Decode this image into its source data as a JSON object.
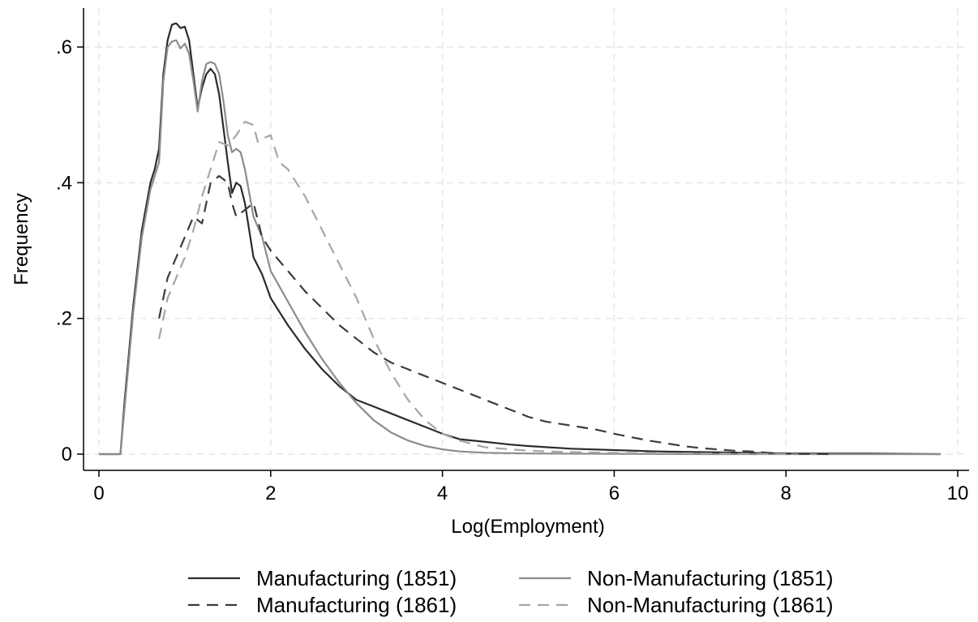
{
  "chart_data": {
    "type": "line",
    "title": "",
    "xlabel": "Log(Employment)",
    "ylabel": "Frequency",
    "xlim": [
      0,
      10
    ],
    "ylim": [
      0,
      0.65
    ],
    "xticks": [
      0,
      2,
      4,
      6,
      8,
      10
    ],
    "xtick_labels": [
      "0",
      "2",
      "4",
      "6",
      "8",
      "10"
    ],
    "yticks": [
      0,
      0.2,
      0.4,
      0.6
    ],
    "ytick_labels": [
      "0",
      ".2",
      ".4",
      ".6"
    ],
    "grid": true,
    "legend_position": "bottom",
    "series": [
      {
        "name": "Manufacturing (1851)",
        "color": "#2b2b2b",
        "dash": "solid",
        "x": [
          0,
          0.25,
          0.3,
          0.4,
          0.5,
          0.6,
          0.65,
          0.7,
          0.75,
          0.8,
          0.85,
          0.9,
          0.95,
          1.0,
          1.05,
          1.1,
          1.15,
          1.2,
          1.25,
          1.3,
          1.35,
          1.4,
          1.45,
          1.5,
          1.55,
          1.6,
          1.65,
          1.7,
          1.8,
          1.9,
          2.0,
          2.2,
          2.4,
          2.6,
          2.8,
          3.0,
          3.2,
          3.4,
          3.6,
          3.8,
          4.0,
          4.2,
          4.5,
          4.8,
          5.0,
          5.5,
          6.0,
          6.5,
          7.0,
          7.5,
          8.0,
          9.0,
          9.8
        ],
        "y": [
          0,
          0,
          0.08,
          0.22,
          0.33,
          0.4,
          0.42,
          0.45,
          0.56,
          0.61,
          0.633,
          0.635,
          0.628,
          0.63,
          0.61,
          0.56,
          0.51,
          0.54,
          0.56,
          0.568,
          0.56,
          0.53,
          0.48,
          0.43,
          0.385,
          0.4,
          0.395,
          0.37,
          0.29,
          0.265,
          0.23,
          0.19,
          0.155,
          0.125,
          0.1,
          0.08,
          0.07,
          0.06,
          0.05,
          0.04,
          0.03,
          0.022,
          0.018,
          0.014,
          0.012,
          0.008,
          0.006,
          0.004,
          0.003,
          0.002,
          0.001,
          0.001,
          0.0
        ]
      },
      {
        "name": "Non-Manufacturing (1851)",
        "color": "#8c8c8c",
        "dash": "solid",
        "x": [
          0,
          0.25,
          0.3,
          0.4,
          0.5,
          0.6,
          0.65,
          0.7,
          0.75,
          0.8,
          0.85,
          0.9,
          0.95,
          1.0,
          1.05,
          1.1,
          1.15,
          1.2,
          1.25,
          1.3,
          1.35,
          1.4,
          1.45,
          1.5,
          1.55,
          1.6,
          1.65,
          1.7,
          1.8,
          1.9,
          2.0,
          2.2,
          2.4,
          2.6,
          2.8,
          3.0,
          3.2,
          3.4,
          3.6,
          3.8,
          4.0,
          4.2,
          4.5,
          5.0,
          6.0,
          7.0,
          8.0,
          9.0,
          9.8
        ],
        "y": [
          0,
          0,
          0.07,
          0.21,
          0.32,
          0.39,
          0.41,
          0.43,
          0.55,
          0.6,
          0.608,
          0.61,
          0.598,
          0.605,
          0.59,
          0.55,
          0.505,
          0.55,
          0.575,
          0.578,
          0.575,
          0.56,
          0.52,
          0.47,
          0.445,
          0.45,
          0.445,
          0.42,
          0.35,
          0.32,
          0.27,
          0.225,
          0.18,
          0.14,
          0.105,
          0.075,
          0.05,
          0.032,
          0.02,
          0.012,
          0.007,
          0.004,
          0.002,
          0.001,
          0.0005,
          0.0,
          0.0,
          0.0,
          0.0
        ]
      },
      {
        "name": "Manufacturing (1861)",
        "color": "#3c3c3c",
        "dash": "dashed",
        "x": [
          0.7,
          0.8,
          0.9,
          1.0,
          1.1,
          1.2,
          1.3,
          1.4,
          1.5,
          1.55,
          1.6,
          1.7,
          1.8,
          1.9,
          2.0,
          2.2,
          2.4,
          2.6,
          2.8,
          3.0,
          3.2,
          3.4,
          3.6,
          3.8,
          4.0,
          4.2,
          4.4,
          4.6,
          4.8,
          5.0,
          5.2,
          5.4,
          5.6,
          5.8,
          6.0,
          6.2,
          6.4,
          6.6,
          6.8,
          7.0,
          7.2,
          7.4,
          7.6,
          7.8,
          8.0,
          8.2,
          8.5
        ],
        "y": [
          0.2,
          0.26,
          0.29,
          0.32,
          0.35,
          0.34,
          0.4,
          0.41,
          0.4,
          0.37,
          0.35,
          0.36,
          0.37,
          0.32,
          0.3,
          0.27,
          0.24,
          0.215,
          0.19,
          0.17,
          0.15,
          0.135,
          0.125,
          0.115,
          0.105,
          0.095,
          0.085,
          0.075,
          0.065,
          0.055,
          0.048,
          0.044,
          0.04,
          0.036,
          0.03,
          0.025,
          0.02,
          0.016,
          0.012,
          0.009,
          0.007,
          0.005,
          0.004,
          0.002,
          0.001,
          0.0005,
          0.0
        ]
      },
      {
        "name": "Non-Manufacturing (1861)",
        "color": "#a6a6a6",
        "dash": "dashed",
        "x": [
          0.7,
          0.8,
          0.9,
          1.0,
          1.1,
          1.2,
          1.3,
          1.4,
          1.5,
          1.6,
          1.7,
          1.8,
          1.85,
          1.9,
          2.0,
          2.1,
          2.2,
          2.4,
          2.6,
          2.8,
          3.0,
          3.2,
          3.4,
          3.6,
          3.8,
          4.0,
          4.2,
          4.5,
          5.0,
          5.5,
          6.0,
          7.0,
          8.0
        ],
        "y": [
          0.17,
          0.23,
          0.26,
          0.29,
          0.33,
          0.38,
          0.42,
          0.46,
          0.455,
          0.47,
          0.49,
          0.485,
          0.46,
          0.465,
          0.47,
          0.43,
          0.42,
          0.38,
          0.33,
          0.28,
          0.23,
          0.17,
          0.12,
          0.08,
          0.05,
          0.03,
          0.02,
          0.01,
          0.005,
          0.003,
          0.002,
          0.001,
          0.0
        ]
      }
    ]
  }
}
